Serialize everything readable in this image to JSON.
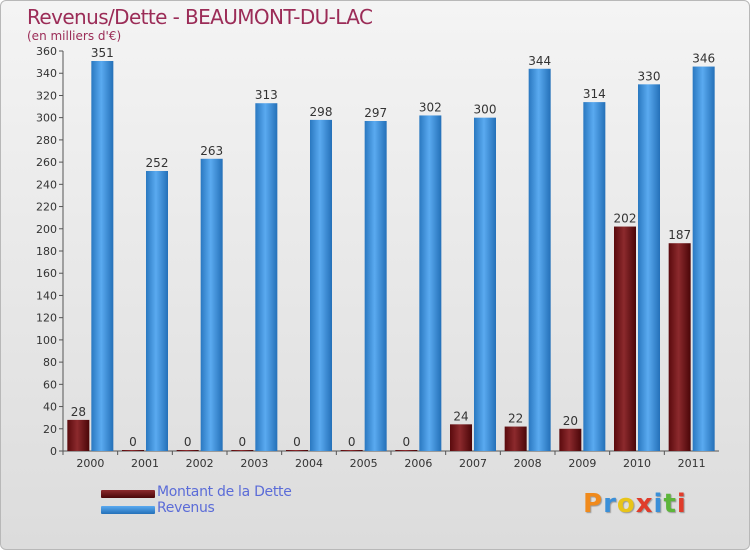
{
  "chart_data": {
    "type": "bar",
    "title": "Revenus/Dette - BEAUMONT-DU-LAC",
    "subtitle": "(en milliers d'€)",
    "categories": [
      "2000",
      "2001",
      "2002",
      "2003",
      "2004",
      "2005",
      "2006",
      "2007",
      "2008",
      "2009",
      "2010",
      "2011"
    ],
    "series": [
      {
        "name": "Montant de la Dette",
        "color": "#7a1518",
        "values": [
          28,
          0,
          0,
          0,
          0,
          0,
          0,
          24,
          22,
          20,
          202,
          187
        ]
      },
      {
        "name": "Revenus",
        "color": "#3a8fd8",
        "values": [
          351,
          252,
          263,
          313,
          298,
          297,
          302,
          300,
          344,
          314,
          330,
          346
        ]
      }
    ],
    "ylim": [
      0,
      360
    ],
    "yticks": [
      0,
      20,
      40,
      60,
      80,
      100,
      120,
      140,
      160,
      180,
      200,
      220,
      240,
      260,
      280,
      300,
      320,
      340,
      360
    ],
    "grid": false,
    "legend_position": "bottom-left"
  },
  "logo": {
    "letters": [
      "P",
      "r",
      "o",
      "x",
      "i",
      "t",
      "i"
    ],
    "colors": [
      "#f08a1c",
      "#3a8fd8",
      "#e8c419",
      "#e03c2b",
      "#3a8fd8",
      "#5db53a",
      "#e03c2b"
    ]
  }
}
